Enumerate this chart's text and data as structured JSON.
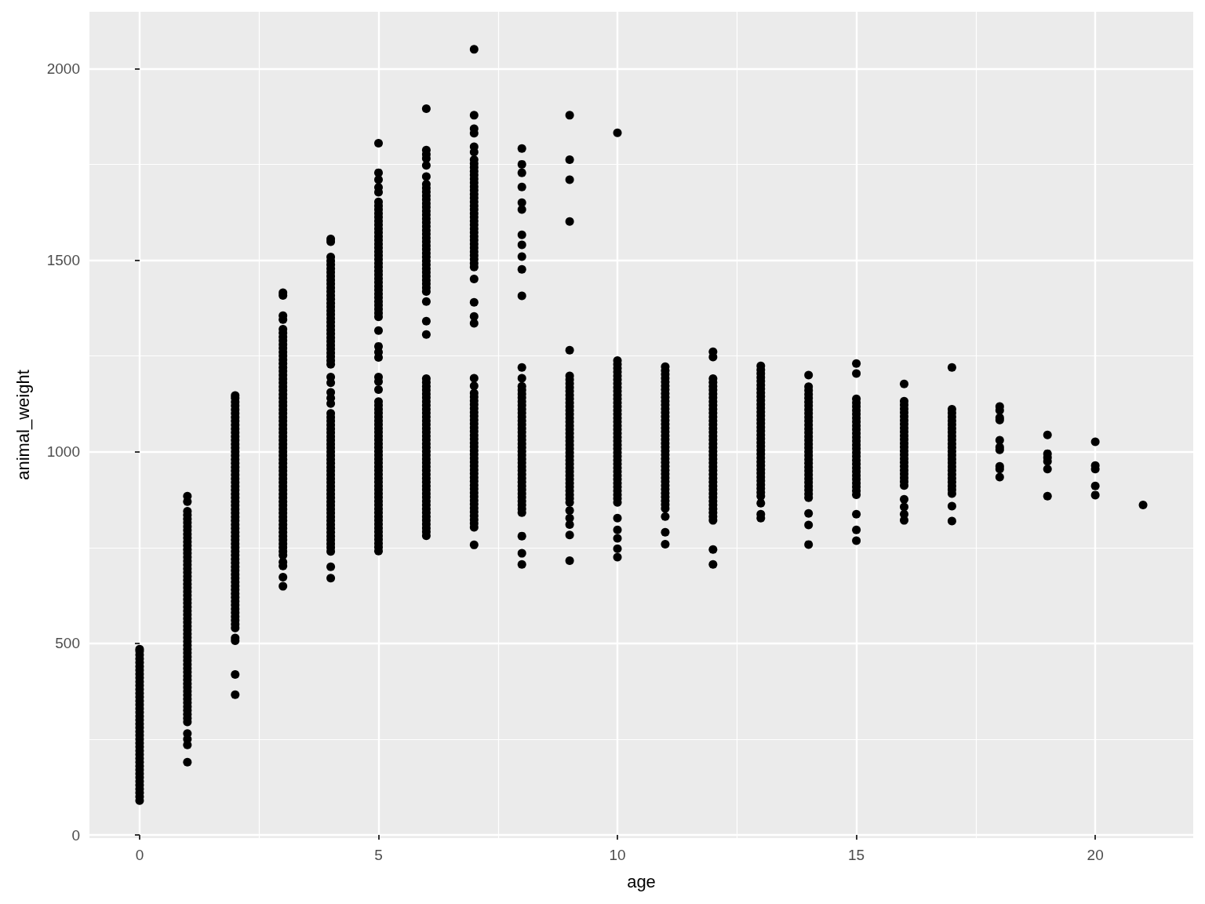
{
  "chart_data": {
    "type": "scatter",
    "xlabel": "age",
    "ylabel": "animal_weight",
    "marker": "circle",
    "grid": true,
    "xlim": [
      -1.05,
      22.05
    ],
    "ylim": [
      -8,
      2148
    ],
    "xticks": [
      0,
      5,
      10,
      15,
      20
    ],
    "yticks": [
      0,
      500,
      1000,
      1500,
      2000
    ],
    "x": [
      0,
      0,
      0,
      0,
      0,
      0,
      0,
      0,
      0,
      0,
      0,
      0,
      0,
      0,
      0,
      0,
      0,
      0,
      0,
      0,
      0,
      0,
      0,
      0,
      0,
      0,
      0,
      0,
      0,
      0,
      0,
      0,
      0,
      0,
      0,
      0,
      0,
      0,
      0,
      0,
      0,
      1,
      1,
      1,
      1,
      1,
      1,
      1,
      1,
      1,
      1,
      1,
      1,
      1,
      1,
      1,
      1,
      1,
      1,
      1,
      1,
      1,
      1,
      1,
      1,
      1,
      1,
      1,
      1,
      1,
      1,
      1,
      1,
      1,
      1,
      1,
      1,
      1,
      1,
      1,
      1,
      1,
      1,
      1,
      1,
      1,
      1,
      1,
      1,
      1,
      1,
      1,
      1,
      1,
      1,
      1,
      1,
      1,
      1,
      1,
      1,
      1,
      1,
      2,
      2,
      2,
      2,
      2,
      2,
      2,
      2,
      2,
      2,
      2,
      2,
      2,
      2,
      2,
      2,
      2,
      2,
      2,
      2,
      2,
      2,
      2,
      2,
      2,
      2,
      2,
      2,
      2,
      2,
      2,
      2,
      2,
      2,
      2,
      2,
      2,
      2,
      2,
      2,
      2,
      2,
      2,
      2,
      2,
      2,
      2,
      2,
      2,
      2,
      2,
      2,
      2,
      2,
      2,
      2,
      2,
      2,
      2,
      2,
      2,
      2,
      2,
      2,
      2,
      2,
      3,
      3,
      3,
      3,
      3,
      3,
      3,
      3,
      3,
      3,
      3,
      3,
      3,
      3,
      3,
      3,
      3,
      3,
      3,
      3,
      3,
      3,
      3,
      3,
      3,
      3,
      3,
      3,
      3,
      3,
      3,
      3,
      3,
      3,
      3,
      3,
      3,
      3,
      3,
      3,
      3,
      3,
      3,
      3,
      3,
      3,
      3,
      3,
      3,
      3,
      3,
      3,
      3,
      3,
      3,
      3,
      3,
      3,
      3,
      3,
      3,
      3,
      3,
      3,
      3,
      3,
      3,
      3,
      4,
      4,
      4,
      4,
      4,
      4,
      4,
      4,
      4,
      4,
      4,
      4,
      4,
      4,
      4,
      4,
      4,
      4,
      4,
      4,
      4,
      4,
      4,
      4,
      4,
      4,
      4,
      4,
      4,
      4,
      4,
      4,
      4,
      4,
      4,
      4,
      4,
      4,
      4,
      4,
      4,
      4,
      4,
      4,
      4,
      4,
      4,
      4,
      4,
      4,
      4,
      4,
      4,
      4,
      4,
      4,
      4,
      4,
      4,
      4,
      4,
      4,
      4,
      4,
      4,
      4,
      4,
      4,
      4,
      4,
      4,
      4,
      4,
      4,
      4,
      5,
      5,
      5,
      5,
      5,
      5,
      5,
      5,
      5,
      5,
      5,
      5,
      5,
      5,
      5,
      5,
      5,
      5,
      5,
      5,
      5,
      5,
      5,
      5,
      5,
      5,
      5,
      5,
      5,
      5,
      5,
      5,
      5,
      5,
      5,
      5,
      5,
      5,
      5,
      5,
      5,
      5,
      5,
      5,
      5,
      5,
      5,
      5,
      5,
      5,
      5,
      5,
      5,
      5,
      5,
      5,
      5,
      5,
      5,
      5,
      5,
      5,
      5,
      5,
      5,
      5,
      5,
      5,
      5,
      5,
      5,
      5,
      5,
      5,
      5,
      5,
      5,
      5,
      5,
      5,
      5,
      5,
      5,
      6,
      6,
      6,
      6,
      6,
      6,
      6,
      6,
      6,
      6,
      6,
      6,
      6,
      6,
      6,
      6,
      6,
      6,
      6,
      6,
      6,
      6,
      6,
      6,
      6,
      6,
      6,
      6,
      6,
      6,
      6,
      6,
      6,
      6,
      6,
      6,
      6,
      6,
      6,
      6,
      6,
      6,
      6,
      6,
      6,
      6,
      6,
      6,
      6,
      6,
      6,
      6,
      6,
      6,
      6,
      6,
      6,
      6,
      6,
      6,
      6,
      6,
      6,
      6,
      6,
      6,
      6,
      6,
      6,
      6,
      6,
      6,
      6,
      6,
      6,
      6,
      6,
      6,
      6,
      6,
      7,
      7,
      7,
      7,
      7,
      7,
      7,
      7,
      7,
      7,
      7,
      7,
      7,
      7,
      7,
      7,
      7,
      7,
      7,
      7,
      7,
      7,
      7,
      7,
      7,
      7,
      7,
      7,
      7,
      7,
      7,
      7,
      7,
      7,
      7,
      7,
      7,
      7,
      7,
      7,
      7,
      7,
      7,
      7,
      7,
      7,
      7,
      7,
      7,
      7,
      7,
      7,
      7,
      7,
      7,
      7,
      7,
      7,
      7,
      7,
      7,
      7,
      7,
      7,
      7,
      7,
      7,
      7,
      7,
      7,
      7,
      7,
      7,
      7,
      7,
      7,
      7,
      7,
      8,
      8,
      8,
      8,
      8,
      8,
      8,
      8,
      8,
      8,
      8,
      8,
      8,
      8,
      8,
      8,
      8,
      8,
      8,
      8,
      8,
      8,
      8,
      8,
      8,
      8,
      8,
      8,
      8,
      8,
      8,
      8,
      8,
      8,
      8,
      8,
      8,
      8,
      8,
      8,
      8,
      8,
      8,
      8,
      8,
      8,
      8,
      8,
      8,
      8,
      9,
      9,
      9,
      9,
      9,
      9,
      9,
      9,
      9,
      9,
      9,
      9,
      9,
      9,
      9,
      9,
      9,
      9,
      9,
      9,
      9,
      9,
      9,
      9,
      9,
      9,
      9,
      9,
      9,
      9,
      9,
      9,
      9,
      9,
      9,
      9,
      9,
      9,
      9,
      9,
      9,
      9,
      9,
      9,
      10,
      10,
      10,
      10,
      10,
      10,
      10,
      10,
      10,
      10,
      10,
      10,
      10,
      10,
      10,
      10,
      10,
      10,
      10,
      10,
      10,
      10,
      10,
      10,
      10,
      10,
      10,
      10,
      10,
      10,
      10,
      10,
      10,
      10,
      10,
      10,
      10,
      10,
      10,
      10,
      10,
      10,
      10,
      10,
      11,
      11,
      11,
      11,
      11,
      11,
      11,
      11,
      11,
      11,
      11,
      11,
      11,
      11,
      11,
      11,
      11,
      11,
      11,
      11,
      11,
      11,
      11,
      11,
      11,
      11,
      11,
      11,
      11,
      11,
      11,
      11,
      11,
      11,
      11,
      11,
      11,
      11,
      11,
      11,
      11,
      12,
      12,
      12,
      12,
      12,
      12,
      12,
      12,
      12,
      12,
      12,
      12,
      12,
      12,
      12,
      12,
      12,
      12,
      12,
      12,
      12,
      12,
      12,
      12,
      12,
      12,
      12,
      12,
      12,
      12,
      12,
      12,
      12,
      12,
      12,
      12,
      12,
      12,
      12,
      12,
      12,
      12,
      13,
      13,
      13,
      13,
      13,
      13,
      13,
      13,
      13,
      13,
      13,
      13,
      13,
      13,
      13,
      13,
      13,
      13,
      13,
      13,
      13,
      13,
      13,
      13,
      13,
      13,
      13,
      13,
      13,
      13,
      13,
      13,
      13,
      13,
      13,
      13,
      13,
      13,
      14,
      14,
      14,
      14,
      14,
      14,
      14,
      14,
      14,
      14,
      14,
      14,
      14,
      14,
      14,
      14,
      14,
      14,
      14,
      14,
      14,
      14,
      14,
      14,
      14,
      14,
      14,
      14,
      14,
      14,
      14,
      14,
      14,
      14,
      15,
      15,
      15,
      15,
      15,
      15,
      15,
      15,
      15,
      15,
      15,
      15,
      15,
      15,
      15,
      15,
      15,
      15,
      15,
      15,
      15,
      15,
      15,
      15,
      15,
      15,
      15,
      15,
      15,
      15,
      15,
      16,
      16,
      16,
      16,
      16,
      16,
      16,
      16,
      16,
      16,
      16,
      16,
      16,
      16,
      16,
      16,
      16,
      16,
      16,
      16,
      16,
      16,
      16,
      16,
      16,
      16,
      16,
      16,
      17,
      17,
      17,
      17,
      17,
      17,
      17,
      17,
      17,
      17,
      17,
      17,
      17,
      17,
      17,
      17,
      17,
      17,
      17,
      17,
      17,
      17,
      17,
      17,
      17,
      17,
      18,
      18,
      18,
      18,
      18,
      18,
      18,
      18,
      18,
      18,
      19,
      19,
      19,
      19,
      19,
      19,
      20,
      20,
      20,
      20,
      20,
      21
    ],
    "series": [
      {
        "color": "#000000",
        "values": [
          90,
          100,
          110,
          120,
          130,
          140,
          150,
          160,
          170,
          180,
          190,
          200,
          210,
          220,
          230,
          240,
          250,
          260,
          270,
          280,
          290,
          300,
          310,
          320,
          330,
          340,
          350,
          360,
          370,
          380,
          390,
          400,
          410,
          420,
          430,
          440,
          450,
          460,
          470,
          480,
          485,
          190,
          235,
          250,
          265,
          295,
          305,
          315,
          325,
          335,
          345,
          355,
          365,
          375,
          385,
          395,
          405,
          415,
          425,
          435,
          445,
          455,
          465,
          475,
          485,
          495,
          505,
          515,
          525,
          535,
          545,
          555,
          565,
          575,
          585,
          595,
          605,
          615,
          625,
          635,
          645,
          655,
          665,
          675,
          685,
          695,
          705,
          715,
          725,
          735,
          745,
          755,
          765,
          775,
          785,
          795,
          805,
          815,
          825,
          835,
          845,
          870,
          884,
          366,
          419,
          507,
          514,
          540,
          550,
          560,
          570,
          580,
          590,
          600,
          610,
          620,
          630,
          640,
          650,
          660,
          670,
          680,
          690,
          700,
          710,
          720,
          730,
          740,
          750,
          760,
          770,
          780,
          790,
          800,
          810,
          820,
          830,
          840,
          850,
          860,
          870,
          880,
          890,
          900,
          910,
          920,
          930,
          940,
          950,
          960,
          970,
          980,
          990,
          1000,
          1010,
          1020,
          1030,
          1040,
          1050,
          1060,
          1070,
          1080,
          1090,
          1100,
          1110,
          1120,
          1130,
          1140,
          1147,
          649,
          673,
          702,
          712,
          730,
          740,
          750,
          760,
          770,
          780,
          790,
          800,
          810,
          820,
          830,
          840,
          850,
          860,
          870,
          880,
          890,
          900,
          910,
          920,
          930,
          940,
          950,
          960,
          970,
          980,
          990,
          1000,
          1010,
          1020,
          1030,
          1040,
          1050,
          1060,
          1070,
          1080,
          1090,
          1100,
          1110,
          1120,
          1130,
          1140,
          1150,
          1160,
          1170,
          1180,
          1190,
          1200,
          1210,
          1220,
          1230,
          1240,
          1250,
          1260,
          1270,
          1280,
          1290,
          1300,
          1310,
          1320,
          1345,
          1355,
          1408,
          1415,
          670,
          700,
          740,
          750,
          760,
          770,
          780,
          790,
          800,
          810,
          820,
          830,
          840,
          850,
          860,
          870,
          880,
          890,
          900,
          910,
          920,
          930,
          940,
          950,
          960,
          970,
          980,
          990,
          1000,
          1010,
          1020,
          1030,
          1040,
          1050,
          1060,
          1070,
          1080,
          1090,
          1100,
          1126,
          1140,
          1155,
          1180,
          1195,
          1228,
          1238,
          1248,
          1258,
          1268,
          1278,
          1288,
          1298,
          1308,
          1318,
          1328,
          1338,
          1348,
          1358,
          1368,
          1378,
          1388,
          1398,
          1408,
          1418,
          1428,
          1438,
          1448,
          1458,
          1468,
          1478,
          1488,
          1498,
          1508,
          1548,
          1555,
          741,
          751,
          761,
          771,
          781,
          791,
          801,
          811,
          821,
          831,
          841,
          851,
          861,
          871,
          881,
          891,
          901,
          911,
          921,
          931,
          941,
          951,
          961,
          971,
          981,
          991,
          1001,
          1011,
          1021,
          1031,
          1041,
          1051,
          1061,
          1071,
          1081,
          1091,
          1101,
          1111,
          1121,
          1131,
          1162,
          1183,
          1195,
          1246,
          1260,
          1275,
          1316,
          1352,
          1362,
          1372,
          1382,
          1392,
          1402,
          1412,
          1422,
          1432,
          1442,
          1452,
          1462,
          1472,
          1482,
          1492,
          1502,
          1512,
          1522,
          1532,
          1542,
          1552,
          1562,
          1572,
          1582,
          1592,
          1602,
          1612,
          1622,
          1632,
          1642,
          1652,
          1677,
          1690,
          1710,
          1728,
          1805,
          781,
          791,
          801,
          811,
          821,
          831,
          841,
          851,
          861,
          871,
          881,
          891,
          901,
          911,
          921,
          931,
          941,
          951,
          961,
          971,
          981,
          991,
          1001,
          1011,
          1021,
          1031,
          1041,
          1051,
          1061,
          1071,
          1081,
          1091,
          1101,
          1111,
          1121,
          1131,
          1141,
          1151,
          1161,
          1171,
          1181,
          1191,
          1306,
          1341,
          1392,
          1418,
          1428,
          1438,
          1448,
          1458,
          1468,
          1478,
          1488,
          1498,
          1508,
          1518,
          1528,
          1538,
          1548,
          1558,
          1568,
          1578,
          1588,
          1598,
          1608,
          1618,
          1628,
          1638,
          1648,
          1658,
          1668,
          1678,
          1688,
          1698,
          1718,
          1747,
          1765,
          1776,
          1787,
          1895,
          757,
          803,
          813,
          823,
          833,
          843,
          853,
          863,
          873,
          883,
          893,
          903,
          913,
          923,
          933,
          943,
          953,
          963,
          973,
          983,
          993,
          1003,
          1013,
          1023,
          1033,
          1043,
          1053,
          1063,
          1073,
          1083,
          1093,
          1103,
          1113,
          1123,
          1133,
          1143,
          1153,
          1172,
          1192,
          1335,
          1353,
          1390,
          1451,
          1482,
          1492,
          1502,
          1512,
          1522,
          1532,
          1542,
          1552,
          1562,
          1572,
          1582,
          1592,
          1602,
          1612,
          1622,
          1632,
          1642,
          1652,
          1662,
          1672,
          1682,
          1692,
          1702,
          1712,
          1722,
          1732,
          1742,
          1752,
          1762,
          1782,
          1796,
          1831,
          1843,
          1878,
          2050,
          706,
          735,
          780,
          841,
          851,
          861,
          871,
          881,
          891,
          901,
          911,
          921,
          931,
          941,
          951,
          961,
          971,
          981,
          991,
          1001,
          1011,
          1021,
          1031,
          1041,
          1051,
          1061,
          1071,
          1081,
          1091,
          1101,
          1111,
          1121,
          1131,
          1141,
          1151,
          1161,
          1171,
          1192,
          1220,
          1407,
          1476,
          1509,
          1540,
          1566,
          1632,
          1650,
          1691,
          1728,
          1750,
          1791,
          716,
          783,
          810,
          827,
          847,
          868,
          878,
          888,
          898,
          908,
          918,
          928,
          938,
          948,
          958,
          968,
          978,
          988,
          998,
          1008,
          1018,
          1028,
          1038,
          1048,
          1058,
          1068,
          1078,
          1088,
          1098,
          1108,
          1118,
          1128,
          1138,
          1148,
          1158,
          1168,
          1178,
          1188,
          1198,
          1265,
          1601,
          1710,
          1762,
          1878,
          725,
          747,
          774,
          796,
          827,
          868,
          878,
          888,
          898,
          908,
          918,
          928,
          938,
          948,
          958,
          968,
          978,
          988,
          998,
          1008,
          1018,
          1028,
          1038,
          1048,
          1058,
          1068,
          1078,
          1088,
          1098,
          1108,
          1118,
          1128,
          1138,
          1148,
          1158,
          1168,
          1178,
          1188,
          1198,
          1208,
          1218,
          1228,
          1238,
          1832,
          759,
          790,
          831,
          852,
          862,
          872,
          882,
          892,
          902,
          912,
          922,
          932,
          942,
          952,
          962,
          972,
          982,
          992,
          1002,
          1012,
          1022,
          1032,
          1042,
          1052,
          1062,
          1072,
          1082,
          1092,
          1102,
          1112,
          1122,
          1132,
          1142,
          1152,
          1162,
          1172,
          1182,
          1192,
          1202,
          1212,
          1222,
          706,
          745,
          821,
          831,
          841,
          851,
          861,
          871,
          881,
          891,
          901,
          911,
          921,
          931,
          941,
          951,
          961,
          971,
          981,
          991,
          1001,
          1011,
          1021,
          1031,
          1041,
          1051,
          1061,
          1071,
          1081,
          1091,
          1101,
          1111,
          1121,
          1131,
          1141,
          1151,
          1161,
          1171,
          1181,
          1191,
          1247,
          1261,
          827,
          837,
          866,
          884,
          894,
          904,
          914,
          924,
          934,
          944,
          954,
          964,
          974,
          984,
          994,
          1004,
          1014,
          1024,
          1034,
          1044,
          1054,
          1064,
          1074,
          1084,
          1094,
          1104,
          1114,
          1124,
          1134,
          1144,
          1154,
          1164,
          1174,
          1184,
          1194,
          1204,
          1214,
          1224,
          758,
          809,
          839,
          880,
          890,
          900,
          910,
          920,
          930,
          940,
          950,
          960,
          970,
          980,
          990,
          1000,
          1010,
          1020,
          1030,
          1040,
          1050,
          1060,
          1070,
          1080,
          1090,
          1100,
          1110,
          1120,
          1130,
          1140,
          1150,
          1160,
          1170,
          1200,
          768,
          796,
          837,
          888,
          898,
          908,
          918,
          928,
          938,
          948,
          958,
          968,
          978,
          988,
          998,
          1008,
          1018,
          1028,
          1038,
          1048,
          1058,
          1068,
          1078,
          1088,
          1098,
          1108,
          1118,
          1128,
          1138,
          1204,
          1230,
          821,
          837,
          856,
          876,
          912,
          922,
          932,
          942,
          952,
          962,
          972,
          982,
          992,
          1002,
          1012,
          1022,
          1032,
          1042,
          1052,
          1062,
          1072,
          1082,
          1092,
          1102,
          1112,
          1122,
          1132,
          1177,
          819,
          858,
          891,
          901,
          911,
          921,
          931,
          941,
          951,
          961,
          971,
          981,
          991,
          1001,
          1011,
          1021,
          1031,
          1041,
          1051,
          1061,
          1071,
          1081,
          1091,
          1101,
          1111,
          1220,
          934,
          955,
          962,
          1005,
          1012,
          1030,
          1083,
          1089,
          1108,
          1118,
          884,
          955,
          975,
          985,
          995,
          1044,
          887,
          911,
          955,
          964,
          1026,
          861
        ]
      }
    ]
  }
}
